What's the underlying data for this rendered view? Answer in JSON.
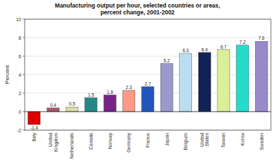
{
  "chart_data": {
    "type": "bar",
    "title": "Manufacturing output per hour, selected countries or areas,\npercent change, 2001-2002",
    "ylabel": "Percent",
    "categories": [
      "Italy",
      "United\nKingdom",
      "Netherlands",
      "Canada",
      "Norway",
      "Germany",
      "France",
      "Japan",
      "Belgium",
      "United\nStates",
      "Taiwan",
      "Korea",
      "Sweden"
    ],
    "values": [
      -1.4,
      0.4,
      0.5,
      1.5,
      1.8,
      2.3,
      2.7,
      5.2,
      6.3,
      6.4,
      6.7,
      7.2,
      7.6
    ],
    "colors": [
      "#dd0000",
      "#aa5566",
      "#ddddaa",
      "#228888",
      "#772288",
      "#ff9988",
      "#2255bb",
      "#9999cc",
      "#bbddf0",
      "#112255",
      "#ddee99",
      "#22ddcc",
      "#9988cc"
    ],
    "ylim": [
      -2,
      10
    ],
    "yticks": [
      -2,
      0,
      2,
      4,
      6,
      8,
      10
    ],
    "grid": true,
    "data_labels": true
  }
}
